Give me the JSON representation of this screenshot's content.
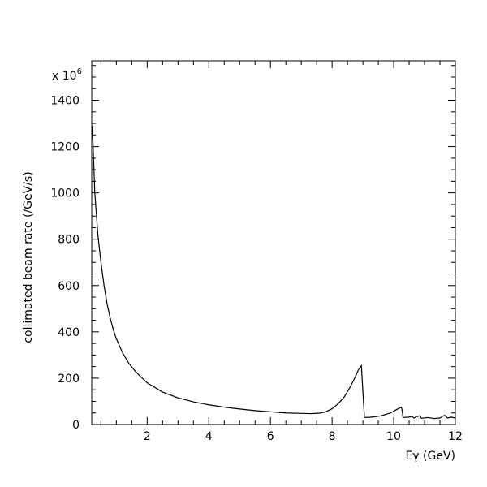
{
  "chart_data": {
    "type": "line",
    "xlabel": "Eγ (GeV)",
    "ylabel": "collimated beam rate (/GeV/s)",
    "y_multiplier": "x 10",
    "y_multiplier_exp": "6",
    "xlim": [
      0.2,
      12
    ],
    "ylim": [
      0,
      1570
    ],
    "x_ticks": [
      2,
      4,
      6,
      8,
      10,
      12
    ],
    "y_ticks": [
      0,
      200,
      400,
      600,
      800,
      1000,
      1200,
      1400
    ],
    "grid": false,
    "legend": "none",
    "series": [
      {
        "color": "#000000",
        "x": [
          0.22,
          0.3,
          0.4,
          0.5,
          0.6,
          0.7,
          0.8,
          0.9,
          1.0,
          1.2,
          1.4,
          1.6,
          1.8,
          2.0,
          2.5,
          3.0,
          3.5,
          4.0,
          4.5,
          5.0,
          5.5,
          6.0,
          6.5,
          7.0,
          7.3,
          7.6,
          7.8,
          8.0,
          8.2,
          8.4,
          8.6,
          8.75,
          8.85,
          8.95,
          9.0,
          9.05,
          9.3,
          9.6,
          9.9,
          10.1,
          10.25,
          10.28,
          10.3,
          10.5,
          10.6,
          10.65,
          10.75,
          10.85,
          10.9,
          11.1,
          11.3,
          11.5,
          11.65,
          11.75,
          11.85,
          12.0
        ],
        "y": [
          1290,
          1000,
          820,
          700,
          600,
          520,
          460,
          410,
          370,
          310,
          265,
          232,
          205,
          180,
          140,
          115,
          98,
          85,
          75,
          67,
          60,
          55,
          50,
          48,
          47,
          49,
          55,
          68,
          90,
          120,
          165,
          205,
          235,
          255,
          140,
          30,
          32,
          38,
          50,
          65,
          75,
          55,
          30,
          32,
          35,
          28,
          34,
          38,
          27,
          30,
          26,
          28,
          40,
          28,
          32,
          28
        ]
      }
    ]
  }
}
